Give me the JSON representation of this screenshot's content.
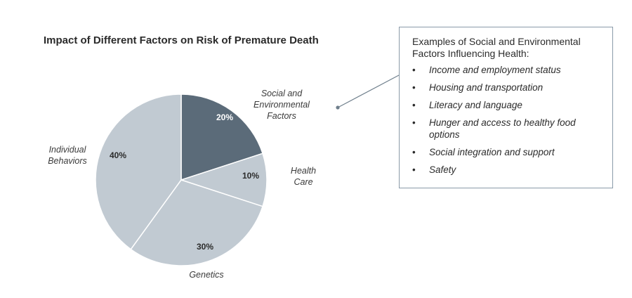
{
  "chart_data": {
    "type": "pie",
    "title": "Impact of Different Factors on Risk of Premature Death",
    "slices": [
      {
        "label": "Social and Environmental Factors",
        "label_lines": [
          "Social and",
          "Environmental",
          "Factors"
        ],
        "value": 20,
        "value_label": "20%",
        "color": "#5b6b79",
        "value_text_color": "#ffffff"
      },
      {
        "label": "Health Care",
        "label_lines": [
          "Health",
          "Care"
        ],
        "value": 10,
        "value_label": "10%",
        "color": "#c1cad2",
        "value_text_color": "#2b2b2b"
      },
      {
        "label": "Genetics",
        "label_lines": [
          "Genetics"
        ],
        "value": 30,
        "value_label": "30%",
        "color": "#c1cad2",
        "value_text_color": "#2b2b2b"
      },
      {
        "label": "Individual Behaviors",
        "label_lines": [
          "Individual",
          "Behaviors"
        ],
        "value": 40,
        "value_label": "40%",
        "color": "#c1cad2",
        "value_text_color": "#2b2b2b"
      }
    ]
  },
  "examples": {
    "heading": "Examples of Social and Environmental Factors Influencing Health:",
    "bullet_symbol": "•",
    "items": [
      "Income and employment status",
      "Housing and transportation",
      "Literacy and language",
      "Hunger and access to healthy food options",
      "Social integration and support",
      "Safety"
    ]
  },
  "colors": {
    "connector": "#6f7f8c",
    "box_border": "#8a9aa8",
    "slice_border": "#ffffff"
  }
}
